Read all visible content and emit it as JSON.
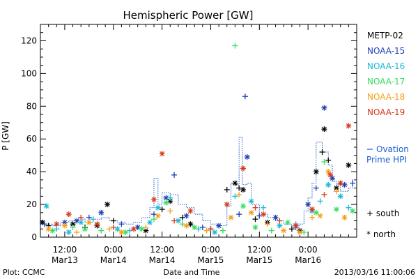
{
  "chart_data": {
    "type": "scatter",
    "title": "Hemispheric Power [GW]",
    "ylabel": "P [GW]",
    "xlabel": "Date and Time",
    "ylim": [
      0,
      130
    ],
    "yticks": [
      0,
      20,
      40,
      60,
      80,
      100,
      120
    ],
    "xlim_hours": [
      -6,
      72
    ],
    "x_ticks": [
      {
        "hour": 0,
        "line1": "12:00",
        "line2": "Mar13"
      },
      {
        "hour": 12,
        "line1": "0:00",
        "line2": "Mar14"
      },
      {
        "hour": 24,
        "line1": "12:00",
        "line2": "Mar14"
      },
      {
        "hour": 36,
        "line1": "0:00",
        "line2": "Mar15"
      },
      {
        "hour": 48,
        "line1": "12:00",
        "line2": "Mar15"
      },
      {
        "hour": 60,
        "line1": "0:00",
        "line2": "Mar16"
      }
    ],
    "grid": false,
    "legend_position": "right",
    "marker_legend": [
      {
        "symbol": "+",
        "label": "south"
      },
      {
        "symbol": "*",
        "label": "north"
      }
    ],
    "series": [
      {
        "name": "METP-02",
        "color": "#000000",
        "points": [
          [
            -5.5,
            9,
            "*"
          ],
          [
            -4,
            7,
            "+"
          ],
          [
            2,
            8,
            "*"
          ],
          [
            5,
            6,
            "+"
          ],
          [
            8,
            7,
            "*"
          ],
          [
            10.5,
            20,
            "*"
          ],
          [
            12,
            10,
            "+"
          ],
          [
            20,
            4,
            "*"
          ],
          [
            24,
            17,
            "+"
          ],
          [
            26,
            22,
            "*"
          ],
          [
            29,
            12,
            "+"
          ],
          [
            31,
            8,
            "*"
          ],
          [
            36,
            5,
            "+"
          ],
          [
            40,
            29,
            "+"
          ],
          [
            42,
            33,
            "*"
          ],
          [
            43,
            30,
            "+"
          ],
          [
            44,
            29,
            "*"
          ],
          [
            47,
            11,
            "+"
          ],
          [
            50,
            9,
            "*"
          ],
          [
            56,
            5,
            "+"
          ],
          [
            58,
            4,
            "*"
          ],
          [
            62,
            40,
            "*"
          ],
          [
            63.5,
            52,
            "+"
          ],
          [
            64,
            66,
            "*"
          ],
          [
            65,
            47,
            "+"
          ],
          [
            67,
            30,
            "*"
          ],
          [
            68,
            33,
            "+"
          ],
          [
            70,
            44,
            "*"
          ]
        ]
      },
      {
        "name": "NOAA-15",
        "color": "#1a3fb5",
        "points": [
          [
            -5,
            8,
            "+"
          ],
          [
            0,
            9,
            "*"
          ],
          [
            3,
            10,
            "*"
          ],
          [
            6,
            12,
            "+"
          ],
          [
            9,
            15,
            "*"
          ],
          [
            14,
            8,
            "+"
          ],
          [
            18,
            6,
            "*"
          ],
          [
            22,
            14,
            "+"
          ],
          [
            25,
            24,
            "*"
          ],
          [
            27,
            38,
            "+"
          ],
          [
            30,
            13,
            "*"
          ],
          [
            34,
            6,
            "+"
          ],
          [
            38,
            7,
            "*"
          ],
          [
            43,
            14,
            "+"
          ],
          [
            44.5,
            86,
            "+"
          ],
          [
            45,
            49,
            "*"
          ],
          [
            48,
            13,
            "+"
          ],
          [
            52,
            12,
            "*"
          ],
          [
            57,
            6,
            "+"
          ],
          [
            60,
            20,
            "*"
          ],
          [
            62,
            30,
            "+"
          ],
          [
            64,
            79,
            "*"
          ],
          [
            66,
            36,
            "*"
          ],
          [
            69,
            32,
            "*"
          ],
          [
            71,
            33,
            "+"
          ]
        ]
      },
      {
        "name": "NOAA-16",
        "color": "#19b8d8",
        "points": [
          [
            -4.5,
            19,
            "*"
          ],
          [
            -2,
            5,
            "+"
          ],
          [
            1,
            3,
            "*"
          ],
          [
            4,
            9,
            "*"
          ],
          [
            7,
            11,
            "+"
          ],
          [
            13,
            5,
            "*"
          ],
          [
            16,
            4,
            "+"
          ],
          [
            21,
            9,
            "*"
          ],
          [
            23,
            18,
            "*"
          ],
          [
            26,
            24,
            "+"
          ],
          [
            28,
            10,
            "*"
          ],
          [
            33,
            5,
            "+"
          ],
          [
            37,
            3,
            "*"
          ],
          [
            42,
            25,
            "+"
          ],
          [
            46,
            22,
            "*"
          ],
          [
            49,
            18,
            "+"
          ],
          [
            53,
            7,
            "*"
          ],
          [
            57,
            8,
            "+"
          ],
          [
            61,
            16,
            "*"
          ],
          [
            63,
            22,
            "+"
          ],
          [
            65,
            32,
            "*"
          ],
          [
            68,
            25,
            "*"
          ],
          [
            70,
            18,
            "+"
          ]
        ]
      },
      {
        "name": "NOAA-17",
        "color": "#33dd5f",
        "points": [
          [
            -3,
            4,
            "*"
          ],
          [
            2,
            6,
            "+"
          ],
          [
            5,
            5,
            "*"
          ],
          [
            9,
            4,
            "+"
          ],
          [
            15,
            3,
            "*"
          ],
          [
            19,
            5,
            "*"
          ],
          [
            22,
            11,
            "+"
          ],
          [
            25,
            21,
            "*"
          ],
          [
            29,
            8,
            "+"
          ],
          [
            32,
            6,
            "*"
          ],
          [
            39,
            4,
            "+"
          ],
          [
            42,
            117,
            "+"
          ],
          [
            44,
            19,
            "*"
          ],
          [
            47,
            6,
            "*"
          ],
          [
            51,
            4,
            "+"
          ],
          [
            55,
            9,
            "*"
          ],
          [
            59,
            3,
            "+"
          ],
          [
            62,
            15,
            "*"
          ],
          [
            64,
            46,
            "+"
          ],
          [
            67,
            17,
            "*"
          ],
          [
            71,
            16,
            "*"
          ]
        ]
      },
      {
        "name": "NOAA-18",
        "color": "#f59e18",
        "points": [
          [
            -4,
            5,
            "*"
          ],
          [
            0,
            7,
            "*"
          ],
          [
            3,
            3,
            "+"
          ],
          [
            6,
            9,
            "*"
          ],
          [
            11,
            5,
            "+"
          ],
          [
            14,
            3,
            "*"
          ],
          [
            20,
            6,
            "+"
          ],
          [
            23,
            13,
            "*"
          ],
          [
            26,
            16,
            "+"
          ],
          [
            30,
            7,
            "*"
          ],
          [
            35,
            4,
            "+"
          ],
          [
            41,
            12,
            "*"
          ],
          [
            43,
            26,
            "+"
          ],
          [
            46,
            15,
            "*"
          ],
          [
            50,
            8,
            "+"
          ],
          [
            54,
            4,
            "*"
          ],
          [
            58,
            3,
            "*"
          ],
          [
            61,
            12,
            "+"
          ],
          [
            63,
            13,
            "*"
          ],
          [
            65,
            40,
            "*"
          ],
          [
            67,
            28,
            "+"
          ],
          [
            69,
            12,
            "*"
          ]
        ]
      },
      {
        "name": "NOAA-19",
        "color": "#d9361a",
        "points": [
          [
            -2,
            8,
            "*"
          ],
          [
            1,
            14,
            "*"
          ],
          [
            4,
            12,
            "+"
          ],
          [
            8,
            8,
            "*"
          ],
          [
            12,
            6,
            "+"
          ],
          [
            17,
            5,
            "*"
          ],
          [
            22,
            23,
            "*"
          ],
          [
            24,
            51,
            "*"
          ],
          [
            27,
            10,
            "+"
          ],
          [
            31,
            16,
            "*"
          ],
          [
            36,
            5,
            "+"
          ],
          [
            40,
            20,
            "*"
          ],
          [
            44,
            42,
            "*"
          ],
          [
            47,
            18,
            "+"
          ],
          [
            49,
            14,
            "*"
          ],
          [
            53,
            10,
            "+"
          ],
          [
            57,
            7,
            "*"
          ],
          [
            61,
            17,
            "*"
          ],
          [
            64,
            26,
            "+"
          ],
          [
            65.5,
            38,
            "*"
          ],
          [
            68,
            33,
            "*"
          ],
          [
            70,
            68,
            "*"
          ]
        ]
      }
    ],
    "ovation": {
      "label_line1": "Ovation",
      "label_line2": "Prime HPI",
      "color": "#1a5fd0",
      "steps": [
        [
          -6,
          8
        ],
        [
          -3,
          7
        ],
        [
          -1,
          9
        ],
        [
          1,
          10
        ],
        [
          3,
          11
        ],
        [
          5,
          9
        ],
        [
          7,
          11
        ],
        [
          9,
          12
        ],
        [
          11,
          10
        ],
        [
          13,
          9
        ],
        [
          15,
          8
        ],
        [
          17,
          9
        ],
        [
          19,
          12
        ],
        [
          21,
          18
        ],
        [
          22,
          36
        ],
        [
          23,
          20
        ],
        [
          24,
          27
        ],
        [
          26,
          26
        ],
        [
          28,
          20
        ],
        [
          30,
          18
        ],
        [
          32,
          14
        ],
        [
          34,
          10
        ],
        [
          36,
          8
        ],
        [
          38,
          7
        ],
        [
          40,
          19
        ],
        [
          41,
          33
        ],
        [
          42,
          32
        ],
        [
          43,
          61
        ],
        [
          43.8,
          32
        ],
        [
          45,
          33
        ],
        [
          46,
          20
        ],
        [
          48,
          14
        ],
        [
          50,
          12
        ],
        [
          52,
          10
        ],
        [
          54,
          8
        ],
        [
          56,
          7
        ],
        [
          58,
          8
        ],
        [
          59,
          16
        ],
        [
          60,
          24
        ],
        [
          61,
          33
        ],
        [
          62,
          58
        ],
        [
          63.5,
          52
        ],
        [
          65,
          44
        ],
        [
          66,
          34
        ],
        [
          67,
          32
        ],
        [
          68,
          28
        ],
        [
          70,
          30
        ],
        [
          71,
          35
        ]
      ]
    }
  },
  "footer": {
    "left": "Plot: CCMC",
    "center": "Date and Time",
    "right": "2013/03/16 11:00:06"
  }
}
